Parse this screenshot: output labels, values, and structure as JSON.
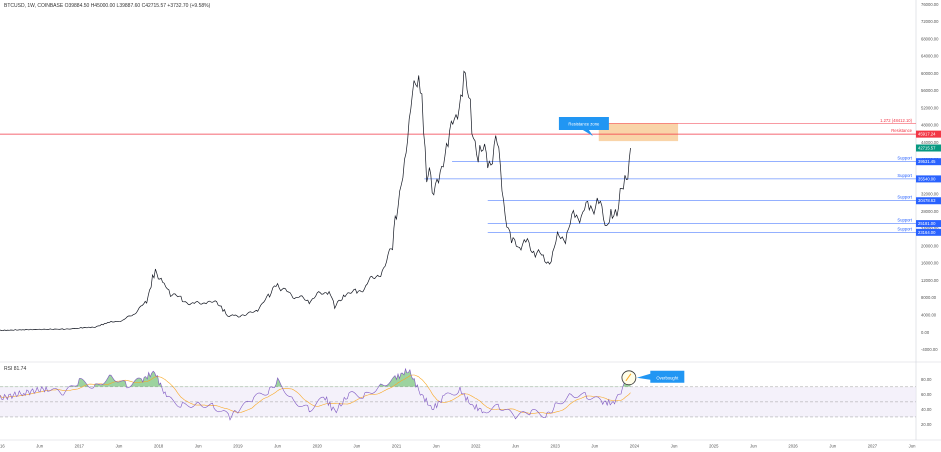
{
  "header": {
    "symbol_line": "BTCUSD, 1W, COINBASE O39884.50 H45000.00 L39887.60 C42715.57 +3732.70 (+9.58%)",
    "rsi_line": "RSI 81.74"
  },
  "colors": {
    "price_line": "#131722",
    "resistance": "#f23645",
    "support": "#2962ff",
    "resistance_zone": "#f7c58b",
    "callout": "#2196f3",
    "rsi_line": "#7e57c2",
    "rsi_ma": "#f9a825",
    "rsi_band": "#ede7f6",
    "overbought_fill": "#4caf50"
  },
  "chart_data": [
    {
      "type": "line",
      "title": "BTCUSD, 1W, COINBASE",
      "xlabel": "",
      "ylabel": "",
      "x_ticks": [
        "2016",
        "Jun",
        "2017",
        "Jun",
        "2018",
        "Jun",
        "2019",
        "Jun",
        "2020",
        "Jun",
        "2021",
        "Jun",
        "2022",
        "Jun",
        "2023",
        "Jun",
        "2024",
        "Jun",
        "2025",
        "Jun",
        "2026",
        "Jun",
        "2027",
        "Jun"
      ],
      "x_range": [
        2016.0,
        2027.55
      ],
      "y_ticks": [
        -4000,
        0,
        4000,
        8000,
        12000,
        16000,
        20000,
        24000,
        28000,
        32000,
        36000,
        40000,
        44000,
        48000,
        52000,
        56000,
        60000,
        64000,
        68000,
        72000,
        76000
      ],
      "y_tick_labels": [
        "-4000.00",
        "0.00",
        "4000.00",
        "8000.00",
        "12000.00",
        "16000.00",
        "20000.00",
        "24000.00",
        "28000.00",
        "32000.00",
        "36000.00",
        "40000.00",
        "44000.00",
        "48000.00",
        "52000.00",
        "56000.00",
        "60000.00",
        "64000.00",
        "68000.00",
        "72000.00",
        "76000.00"
      ],
      "ylim": [
        -5500,
        77000
      ],
      "series": [
        {
          "name": "BTCUSD",
          "x": [
            2016.0,
            2016.5,
            2016.9,
            2017.0,
            2017.2,
            2017.4,
            2017.55,
            2017.7,
            2017.85,
            2017.96,
            2018.05,
            2018.15,
            2018.3,
            2018.45,
            2018.6,
            2018.75,
            2018.87,
            2018.97,
            2019.1,
            2019.25,
            2019.4,
            2019.5,
            2019.6,
            2019.75,
            2019.9,
            2020.0,
            2020.15,
            2020.22,
            2020.35,
            2020.5,
            2020.65,
            2020.8,
            2020.95,
            2021.0,
            2021.1,
            2021.2,
            2021.3,
            2021.38,
            2021.45,
            2021.55,
            2021.65,
            2021.75,
            2021.85,
            2021.95,
            2022.05,
            2022.15,
            2022.25,
            2022.35,
            2022.45,
            2022.55,
            2022.65,
            2022.75,
            2022.85,
            2022.95,
            2023.05,
            2023.15,
            2023.25,
            2023.35,
            2023.45,
            2023.55,
            2023.65,
            2023.72,
            2023.78,
            2023.84,
            2023.9,
            2023.95
          ],
          "values": [
            430,
            670,
            750,
            1000,
            1200,
            2500,
            2700,
            4500,
            7000,
            15000,
            11000,
            9000,
            7500,
            6500,
            7000,
            6600,
            4000,
            3700,
            3900,
            5300,
            8500,
            11000,
            10000,
            8000,
            7300,
            8500,
            9500,
            5800,
            9000,
            9200,
            11500,
            13500,
            19000,
            29000,
            37000,
            58000,
            55000,
            37000,
            35000,
            34000,
            47000,
            48000,
            61000,
            47000,
            42000,
            39000,
            45000,
            31000,
            20000,
            21000,
            20000,
            19000,
            17000,
            16500,
            23000,
            22000,
            28000,
            27000,
            30000,
            29000,
            26000,
            27000,
            28000,
            35000,
            37000,
            42700
          ]
        }
      ],
      "levels": [
        {
          "label": "1.272 (48412.10)",
          "value": 48412.1,
          "type": "fib"
        },
        {
          "label": "Resistance",
          "value": 45917.24,
          "type": "resistance",
          "tag": "45917.24"
        },
        {
          "label": "Support",
          "value": 39531.45,
          "type": "support",
          "tag": "39531.45"
        },
        {
          "label": "Support",
          "value": 35540.0,
          "type": "support",
          "tag": "35540.00"
        },
        {
          "label": "Support",
          "value": 30478.63,
          "type": "support",
          "tag": "30478.63"
        },
        {
          "label": "Support",
          "value": 25181.0,
          "type": "support",
          "tag": "25181.00"
        },
        {
          "label": "Support",
          "value": 23164.0,
          "type": "support",
          "tag": "23164.00"
        }
      ],
      "annotations": [
        "Resistance zone"
      ],
      "current_price_tag": "42715.57",
      "grid": false
    },
    {
      "type": "line",
      "title": "RSI 81.74",
      "y_ticks": [
        20,
        40,
        60,
        80
      ],
      "y_tick_labels": [
        "20.00",
        "40.00",
        "60.00",
        "80.00"
      ],
      "ylim": [
        10,
        95
      ],
      "bands": [
        70,
        50,
        30
      ],
      "series": [
        {
          "name": "RSI",
          "x": [
            2016.0,
            2016.3,
            2016.6,
            2016.8,
            2017.0,
            2017.2,
            2017.4,
            2017.6,
            2017.8,
            2017.95,
            2018.1,
            2018.3,
            2018.5,
            2018.7,
            2018.9,
            2019.0,
            2019.2,
            2019.4,
            2019.5,
            2019.7,
            2019.9,
            2020.1,
            2020.22,
            2020.4,
            2020.6,
            2020.8,
            2021.0,
            2021.15,
            2021.3,
            2021.45,
            2021.6,
            2021.8,
            2021.95,
            2022.1,
            2022.3,
            2022.5,
            2022.7,
            2022.9,
            2023.0,
            2023.2,
            2023.4,
            2023.6,
            2023.75,
            2023.85,
            2023.95
          ],
          "values": [
            55,
            62,
            68,
            60,
            78,
            70,
            85,
            72,
            80,
            90,
            55,
            45,
            48,
            44,
            30,
            38,
            55,
            65,
            78,
            52,
            40,
            56,
            36,
            60,
            58,
            72,
            82,
            93,
            62,
            40,
            56,
            66,
            45,
            38,
            44,
            30,
            37,
            32,
            45,
            60,
            58,
            50,
            48,
            68,
            82
          ]
        }
      ],
      "callout": "Overbought"
    }
  ]
}
